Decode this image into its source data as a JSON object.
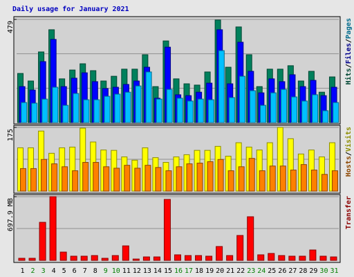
{
  "chart_data": [
    {
      "type": "bar",
      "title": "Daily usage for January 2021",
      "ylim": [
        0,
        479
      ],
      "yticks": [
        479
      ],
      "legend_separator": "/",
      "series": [
        {
          "name": "Hits",
          "color": "#00805c",
          "values": [
            228,
            193,
            328,
            431,
            203,
            244,
            273,
            241,
            193,
            215,
            248,
            248,
            315,
            167,
            379,
            203,
            180,
            174,
            235,
            476,
            257,
            444,
            315,
            167,
            248,
            248,
            264,
            193,
            238,
            141,
            212
          ]
        },
        {
          "name": "Files",
          "color": "#0000ff",
          "values": [
            167,
            151,
            283,
            386,
            167,
            206,
            231,
            190,
            158,
            164,
            177,
            193,
            257,
            113,
            350,
            129,
            125,
            141,
            183,
            431,
            180,
            373,
            238,
            138,
            203,
            190,
            222,
            167,
            196,
            125,
            164
          ]
        },
        {
          "name": "Pages",
          "color": "#00c0ff",
          "values": [
            93,
            90,
            109,
            164,
            80,
            135,
            106,
            106,
            122,
            132,
            141,
            170,
            235,
            109,
            154,
            113,
            100,
            109,
            106,
            334,
            116,
            215,
            148,
            80,
            138,
            154,
            119,
            100,
            129,
            55,
            93
          ]
        }
      ]
    },
    {
      "type": "bar",
      "ylim": [
        0,
        175
      ],
      "yticks": [
        175
      ],
      "legend_separator": "/",
      "series": [
        {
          "name": "Hosts",
          "color": "#ff8000",
          "values": [
            62,
            62,
            87,
            75,
            67,
            56,
            79,
            79,
            67,
            63,
            71,
            63,
            71,
            65,
            56,
            67,
            75,
            77,
            81,
            87,
            56,
            67,
            90,
            56,
            69,
            69,
            58,
            73,
            58,
            46,
            56
          ]
        },
        {
          "name": "Visits",
          "color": "#ffff00",
          "values": [
            119,
            119,
            165,
            104,
            119,
            121,
            173,
            135,
            113,
            112,
            94,
            85,
            119,
            92,
            79,
            94,
            100,
            112,
            112,
            123,
            96,
            133,
            121,
            113,
            133,
            175,
            144,
            102,
            113,
            94,
            133
          ]
        }
      ]
    },
    {
      "type": "bar",
      "ylim": [
        0,
        697.9
      ],
      "yticks": [
        {
          "value": 697.9,
          "label": "697.9 MB"
        }
      ],
      "categories": [
        "1",
        "2",
        "3",
        "4",
        "5",
        "6",
        "7",
        "8",
        "9",
        "10",
        "11",
        "12",
        "13",
        "14",
        "15",
        "16",
        "17",
        "18",
        "19",
        "20",
        "21",
        "22",
        "23",
        "24",
        "25",
        "26",
        "27",
        "28",
        "29",
        "30",
        "31"
      ],
      "category_colors": [
        "#000000",
        "#008000",
        "#008000",
        "#000000",
        "#000000",
        "#000000",
        "#000000",
        "#000000",
        "#008000",
        "#008000",
        "#000000",
        "#000000",
        "#000000",
        "#000000",
        "#000000",
        "#008000",
        "#008000",
        "#000000",
        "#000000",
        "#000000",
        "#000000",
        "#000000",
        "#008000",
        "#008000",
        "#000000",
        "#000000",
        "#000000",
        "#000000",
        "#000000",
        "#008000",
        "#008000"
      ],
      "series": [
        {
          "name": "Transfer",
          "color": "#ff0000",
          "values": [
            23,
            23,
            417,
            698,
            91,
            46,
            46,
            53,
            23,
            53,
            159,
            15,
            38,
            38,
            668,
            61,
            53,
            53,
            46,
            152,
            53,
            273,
            478,
            61,
            76,
            53,
            46,
            46,
            114,
            46,
            38
          ]
        }
      ]
    }
  ]
}
